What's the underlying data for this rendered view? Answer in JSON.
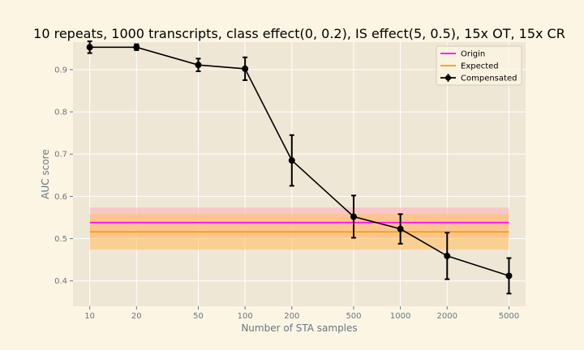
{
  "chart_data": {
    "type": "line",
    "title": "10 repeats, 1000 transcripts, class effect(0, 0.2), IS effect(5, 0.5), 15x OT, 15x CR",
    "xlabel": "Number of STA samples",
    "ylabel": "AUC score",
    "xscale": "log",
    "xlim": [
      7.8,
      6400
    ],
    "ylim": [
      0.34,
      0.965
    ],
    "grid": true,
    "legend_position": "top-right",
    "xticks": [
      10,
      20,
      50,
      100,
      200,
      500,
      1000,
      2000,
      5000
    ],
    "xtick_labels": [
      "10",
      "20",
      "50",
      "100",
      "200",
      "500",
      "1000",
      "2000",
      "5000"
    ],
    "yticks": [
      0.4,
      0.5,
      0.6,
      0.7,
      0.8,
      0.9
    ],
    "ytick_labels": [
      "0.4",
      "0.5",
      "0.6",
      "0.7",
      "0.8",
      "0.9"
    ],
    "series": [
      {
        "name": "Origin",
        "kind": "hline",
        "color": "#ff00ff",
        "x_range": [
          10,
          5000
        ],
        "y": 0.538,
        "band": [
          0.502,
          0.574
        ],
        "band_color": "#ffb3c0"
      },
      {
        "name": "Expected",
        "kind": "hline",
        "color": "#f2a000",
        "x_range": [
          10,
          5000
        ],
        "y": 0.516,
        "band": [
          0.474,
          0.558
        ],
        "band_color": "#ffc266"
      },
      {
        "name": "Compensated",
        "kind": "errorbar",
        "color": "#000000",
        "x": [
          10,
          20,
          50,
          100,
          200,
          500,
          1000,
          2000,
          5000
        ],
        "y": [
          0.953,
          0.953,
          0.911,
          0.902,
          0.685,
          0.552,
          0.523,
          0.459,
          0.412
        ],
        "yerr": [
          0.014,
          0.007,
          0.015,
          0.027,
          0.06,
          0.05,
          0.035,
          0.055,
          0.042
        ]
      }
    ]
  }
}
